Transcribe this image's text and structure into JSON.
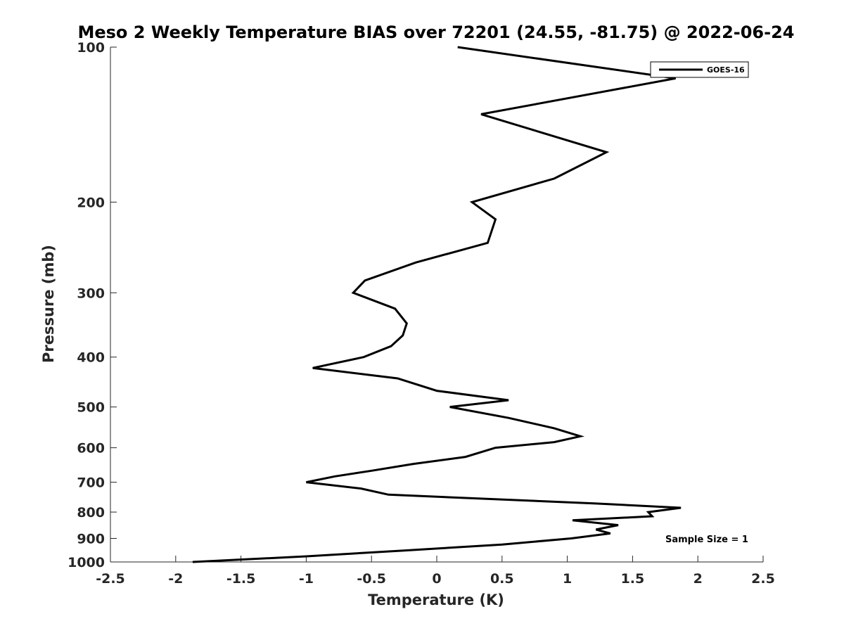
{
  "chart_data": {
    "type": "line",
    "title": "Meso 2 Weekly Temperature BIAS over 72201 (24.55, -81.75) @ 2022-06-24",
    "xlabel": "Temperature (K)",
    "ylabel": "Pressure (mb)",
    "xlim": [
      -2.5,
      2.5
    ],
    "ylim": [
      100,
      1000
    ],
    "y_scale": "log",
    "y_reversed": true,
    "x_ticks": [
      -2.5,
      -2,
      -1.5,
      -1,
      -0.5,
      0,
      0.5,
      1,
      1.5,
      2,
      2.5
    ],
    "x_tick_labels": [
      "-2.5",
      "-2",
      "-1.5",
      "-1",
      "-0.5",
      "0",
      "0.5",
      "1",
      "1.5",
      "2",
      "2.5"
    ],
    "y_ticks": [
      100,
      200,
      300,
      400,
      500,
      600,
      700,
      800,
      900,
      1000
    ],
    "y_tick_labels": [
      "100",
      "200",
      "300",
      "400",
      "500",
      "600",
      "700",
      "800",
      "900",
      "1000"
    ],
    "grid": false,
    "legend_position": "top-right",
    "annotation": "Sample Size = 1",
    "series": [
      {
        "name": "GOES-16",
        "color": "#000000",
        "points": [
          {
            "x": 0.16,
            "y": 100
          },
          {
            "x": 1.83,
            "y": 115
          },
          {
            "x": 0.34,
            "y": 135
          },
          {
            "x": 1.3,
            "y": 160
          },
          {
            "x": 0.9,
            "y": 180
          },
          {
            "x": 0.27,
            "y": 200
          },
          {
            "x": 0.45,
            "y": 216
          },
          {
            "x": 0.39,
            "y": 240
          },
          {
            "x": -0.16,
            "y": 262
          },
          {
            "x": -0.55,
            "y": 284
          },
          {
            "x": -0.64,
            "y": 300
          },
          {
            "x": -0.32,
            "y": 322
          },
          {
            "x": -0.23,
            "y": 344
          },
          {
            "x": -0.26,
            "y": 363
          },
          {
            "x": -0.35,
            "y": 381
          },
          {
            "x": -0.56,
            "y": 400
          },
          {
            "x": -0.95,
            "y": 420
          },
          {
            "x": -0.3,
            "y": 440
          },
          {
            "x": 0.0,
            "y": 465
          },
          {
            "x": 0.55,
            "y": 485
          },
          {
            "x": 0.1,
            "y": 500
          },
          {
            "x": 0.55,
            "y": 525
          },
          {
            "x": 0.9,
            "y": 550
          },
          {
            "x": 1.1,
            "y": 570
          },
          {
            "x": 0.9,
            "y": 585
          },
          {
            "x": 0.45,
            "y": 600
          },
          {
            "x": 0.22,
            "y": 625
          },
          {
            "x": -0.18,
            "y": 645
          },
          {
            "x": -0.5,
            "y": 665
          },
          {
            "x": -0.78,
            "y": 682
          },
          {
            "x": -1.0,
            "y": 700
          },
          {
            "x": -0.58,
            "y": 720
          },
          {
            "x": -0.37,
            "y": 740
          },
          {
            "x": 1.22,
            "y": 770
          },
          {
            "x": 1.87,
            "y": 785
          },
          {
            "x": 1.62,
            "y": 800
          },
          {
            "x": 1.65,
            "y": 815
          },
          {
            "x": 1.04,
            "y": 830
          },
          {
            "x": 1.39,
            "y": 848
          },
          {
            "x": 1.22,
            "y": 865
          },
          {
            "x": 1.33,
            "y": 880
          },
          {
            "x": 1.03,
            "y": 900
          },
          {
            "x": 0.5,
            "y": 925
          },
          {
            "x": -0.25,
            "y": 950
          },
          {
            "x": -1.0,
            "y": 975
          },
          {
            "x": -1.87,
            "y": 1000
          }
        ]
      }
    ]
  }
}
